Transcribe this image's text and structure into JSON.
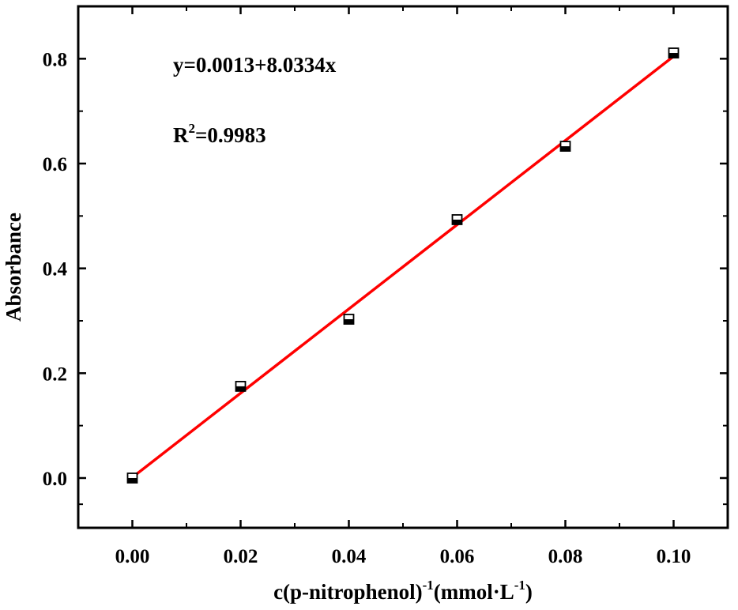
{
  "chart_data": {
    "type": "scatter",
    "title": "",
    "xlabel": {
      "main": "c(p-nitrophenol)",
      "exp1": "-1",
      "unit": "(mmol·L",
      "exp2": "-1",
      "close": ")"
    },
    "ylabel": "Absorbance",
    "xlim": [
      -0.01,
      0.11
    ],
    "ylim": [
      -0.095,
      0.9
    ],
    "xticks": [
      0.0,
      0.02,
      0.04,
      0.06,
      0.08,
      0.1
    ],
    "xtick_labels": [
      "0.00",
      "0.02",
      "0.04",
      "0.06",
      "0.08",
      "0.10"
    ],
    "yticks": [
      0.0,
      0.2,
      0.4,
      0.6,
      0.8
    ],
    "ytick_labels": [
      "0.0",
      "0.2",
      "0.4",
      "0.6",
      "0.8"
    ],
    "series": [
      {
        "marker": "half-filled-square",
        "color": "#000000",
        "x": [
          0.0,
          0.02,
          0.04,
          0.06,
          0.08,
          0.1
        ],
        "y": [
          0.0,
          0.175,
          0.303,
          0.493,
          0.633,
          0.811
        ]
      }
    ],
    "fit": {
      "type": "linear",
      "intercept": 0.0013,
      "slope": 8.0334,
      "x_range": [
        0.0,
        0.1
      ],
      "color": "#ff0000"
    },
    "annotations": {
      "equation": "y=0.0013+8.0334x",
      "r2_prefix": "R",
      "r2_sup": "2",
      "r2_value": "=0.9983"
    },
    "grid": false,
    "legend": "none"
  }
}
